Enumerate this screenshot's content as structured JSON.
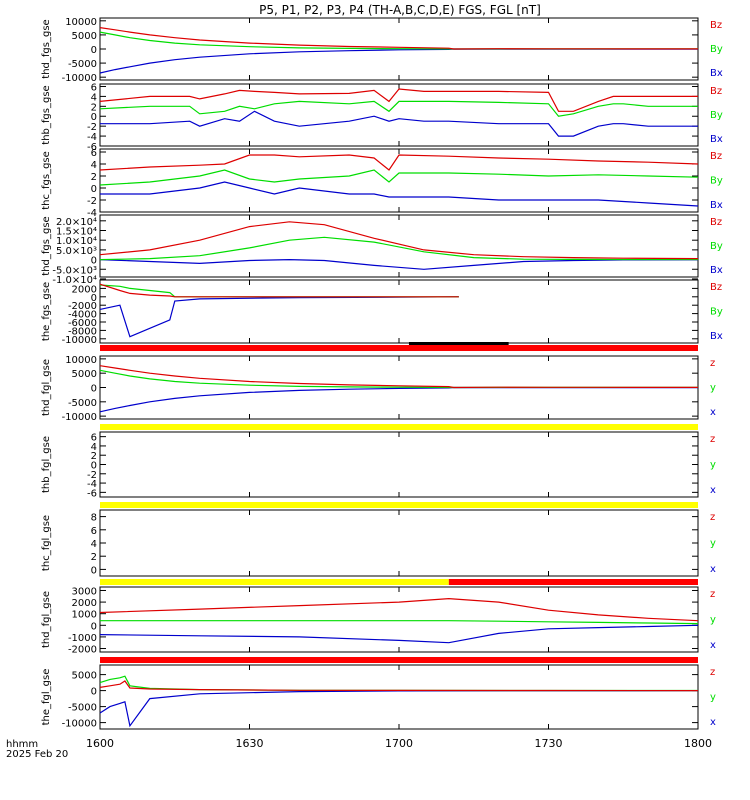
{
  "title": "P5, P1, P2, P3, P4 (TH-A,B,C,D,E) FGS, FGL [nT]",
  "time_axis": {
    "label_line1": "hhmm",
    "label_line2": "2025 Feb 20",
    "ticks": [
      "1600",
      "1630",
      "1700",
      "1730",
      "1800"
    ]
  },
  "colors": {
    "x": "#0000cc",
    "y": "#00dd00",
    "z": "#dd0000",
    "bar_red": "#ff0000",
    "bar_yellow": "#ffff00",
    "bar_black": "#000000"
  },
  "chart_data": [
    {
      "type": "line",
      "name": "thd_fgs_gse",
      "ylabel": "thd_fgs_gse",
      "ylim": [
        -11000,
        11000
      ],
      "ytick_labels": [
        "10000",
        "5000",
        "0",
        "-5000",
        "-10000"
      ],
      "yticks": [
        10000,
        5000,
        0,
        -5000,
        -10000
      ],
      "legend": [
        "Bz",
        "By",
        "Bx"
      ],
      "x": [
        0,
        3,
        6,
        10,
        15,
        20,
        30,
        40,
        50,
        60,
        70,
        71,
        80,
        90,
        100,
        110,
        120
      ],
      "series": [
        {
          "name": "Bz",
          "values": [
            7600,
            6800,
            6000,
            5000,
            4000,
            3200,
            2100,
            1400,
            900,
            600,
            300,
            0,
            100,
            80,
            60,
            50,
            40
          ]
        },
        {
          "name": "By",
          "values": [
            6000,
            5000,
            4000,
            3000,
            2100,
            1500,
            800,
            400,
            200,
            100,
            50,
            0,
            40,
            30,
            20,
            20,
            20
          ]
        },
        {
          "name": "Bx",
          "values": [
            -8500,
            -7300,
            -6300,
            -5000,
            -3800,
            -2900,
            -1700,
            -1000,
            -600,
            -300,
            -150,
            0,
            -50,
            -40,
            -30,
            -20,
            -20
          ]
        }
      ]
    },
    {
      "type": "line",
      "name": "thb_fgs_gse",
      "ylabel": "thb_fgs_gse",
      "ylim": [
        -6,
        6.5
      ],
      "ytick_labels": [
        "6",
        "4",
        "2",
        "0",
        "-2",
        "-4",
        "-6"
      ],
      "yticks": [
        6,
        4,
        2,
        0,
        -2,
        -4,
        -6
      ],
      "legend": [
        "Bz",
        "By",
        "Bx"
      ],
      "x": [
        0,
        10,
        18,
        20,
        25,
        28,
        31,
        35,
        40,
        50,
        55,
        58,
        60,
        65,
        70,
        80,
        90,
        92,
        95,
        100,
        103,
        105,
        110,
        120
      ],
      "series": [
        {
          "name": "Bz",
          "values": [
            3,
            4,
            4,
            3.5,
            4.5,
            5.2,
            5,
            4.8,
            4.5,
            4.6,
            5.2,
            3,
            5.5,
            5,
            5,
            5,
            4.8,
            1,
            1,
            3,
            4,
            4,
            4,
            4
          ]
        },
        {
          "name": "By",
          "values": [
            1.5,
            2,
            2,
            0.5,
            1,
            2,
            1.5,
            2.5,
            3,
            2.5,
            3,
            1,
            3,
            3,
            3,
            2.8,
            2.5,
            0,
            0.5,
            2,
            2.5,
            2.5,
            2,
            2
          ]
        },
        {
          "name": "Bx",
          "values": [
            -1.5,
            -1.5,
            -1,
            -2,
            -0.5,
            -1,
            1,
            -1,
            -2,
            -1,
            0,
            -1,
            -0.5,
            -1,
            -1,
            -1.5,
            -1.5,
            -4,
            -4,
            -2,
            -1.5,
            -1.5,
            -2,
            -2
          ]
        }
      ]
    },
    {
      "type": "line",
      "name": "thc_fgs_gse",
      "ylabel": "thc_fgs_gse",
      "ylim": [
        -4,
        6.5
      ],
      "ytick_labels": [
        "6",
        "4",
        "2",
        "0",
        "-2",
        "-4"
      ],
      "yticks": [
        6,
        4,
        2,
        0,
        -2,
        -4
      ],
      "legend": [
        "Bz",
        "By",
        "Bx"
      ],
      "x": [
        0,
        10,
        20,
        25,
        30,
        35,
        40,
        50,
        55,
        58,
        60,
        70,
        80,
        90,
        100,
        110,
        120
      ],
      "series": [
        {
          "name": "Bz",
          "values": [
            3,
            3.5,
            3.8,
            4,
            5.5,
            5.5,
            5.2,
            5.5,
            5,
            3,
            5.5,
            5.3,
            5,
            4.8,
            4.5,
            4.3,
            4
          ]
        },
        {
          "name": "By",
          "values": [
            0.5,
            1,
            2,
            3,
            1.5,
            1,
            1.5,
            2,
            3,
            1,
            2.5,
            2.5,
            2.3,
            2,
            2.2,
            2,
            1.8
          ]
        },
        {
          "name": "Bx",
          "values": [
            -1,
            -1,
            0,
            1,
            0,
            -1,
            0,
            -1,
            -1,
            -1.5,
            -1.5,
            -1.5,
            -2,
            -2,
            -2,
            -2.5,
            -3
          ]
        }
      ]
    },
    {
      "type": "line",
      "name": "thd_fgs_gse",
      "ylabel": "thd_fgs_gse",
      "ylim": [
        -9000,
        23000
      ],
      "ytick_labels": [
        "2.0×10⁴",
        "1.5×10⁴",
        "1.0×10⁴",
        "5.0×10³",
        "0",
        "-5.0×10³",
        "-1.0×10⁴"
      ],
      "yticks": [
        20000,
        15000,
        10000,
        5000,
        0,
        -5000,
        -10000
      ],
      "legend": [
        "Bz",
        "By",
        "Bx"
      ],
      "x": [
        0,
        10,
        20,
        30,
        38,
        45,
        55,
        65,
        75,
        85,
        95,
        105,
        120
      ],
      "series": [
        {
          "name": "Bz",
          "values": [
            2500,
            5000,
            10000,
            17000,
            19500,
            18000,
            11000,
            5000,
            2500,
            1500,
            1000,
            700,
            500
          ]
        },
        {
          "name": "By",
          "values": [
            0,
            500,
            2000,
            6000,
            10000,
            11500,
            9000,
            4000,
            1000,
            200,
            100,
            50,
            50
          ]
        },
        {
          "name": "Bx",
          "values": [
            0,
            -1000,
            -2000,
            -500,
            0,
            -500,
            -3000,
            -5000,
            -3000,
            -1000,
            -500,
            -200,
            -100
          ]
        }
      ]
    },
    {
      "type": "line",
      "name": "the_fgs_gse",
      "ylabel": "the_fgs_gse",
      "ylim": [
        -11000,
        4000
      ],
      "ytick_labels": [
        "2000",
        "0",
        "-2000",
        "-4000",
        "-6000",
        "-8000",
        "-10000"
      ],
      "yticks": [
        2000,
        0,
        -2000,
        -4000,
        -6000,
        -8000,
        -10000
      ],
      "legend": [
        "Bz",
        "By",
        "Bx"
      ],
      "x": [
        0,
        4,
        6,
        10,
        14,
        15,
        20,
        40,
        60,
        72
      ],
      "series": [
        {
          "name": "Bz",
          "values": [
            3000,
            1500,
            800,
            400,
            200,
            0,
            0,
            0,
            0,
            0
          ]
        },
        {
          "name": "By",
          "values": [
            2800,
            2500,
            2000,
            1500,
            1000,
            0,
            0,
            0,
            0,
            0
          ]
        },
        {
          "name": "Bx",
          "values": [
            -3000,
            -2000,
            -9500,
            -7500,
            -5500,
            -1000,
            -500,
            -200,
            -100,
            0
          ]
        }
      ]
    },
    {
      "type": "line",
      "name": "thd_fgl_gse",
      "ylabel": "thd_fgl_gse",
      "ylim": [
        -11000,
        11000
      ],
      "ytick_labels": [
        "10000",
        "5000",
        "0",
        "-5000",
        "-10000"
      ],
      "yticks": [
        10000,
        5000,
        0,
        -5000,
        -10000
      ],
      "legend": [
        "z",
        "y",
        "x"
      ],
      "x": [
        0,
        3,
        6,
        10,
        15,
        20,
        30,
        40,
        50,
        60,
        70,
        71,
        80,
        90,
        100,
        110,
        120
      ],
      "series": [
        {
          "name": "z",
          "values": [
            7600,
            6800,
            6000,
            5000,
            4000,
            3200,
            2100,
            1400,
            900,
            600,
            300,
            0,
            100,
            80,
            60,
            50,
            40
          ]
        },
        {
          "name": "y",
          "values": [
            6000,
            5000,
            4000,
            3000,
            2100,
            1500,
            800,
            400,
            200,
            100,
            50,
            0,
            40,
            30,
            20,
            20,
            20
          ]
        },
        {
          "name": "x",
          "values": [
            -8500,
            -7300,
            -6300,
            -5000,
            -3800,
            -2900,
            -1700,
            -1000,
            -600,
            -300,
            -150,
            0,
            -50,
            -40,
            -30,
            -20,
            -20
          ]
        }
      ]
    },
    {
      "type": "line",
      "name": "thb_fgl_gse",
      "ylabel": "thb_fgl_gse",
      "ylim": [
        -7,
        7
      ],
      "ytick_labels": [
        "6",
        "4",
        "2",
        "0",
        "-2",
        "-4",
        "-6"
      ],
      "yticks": [
        6,
        4,
        2,
        0,
        -2,
        -4,
        -6
      ],
      "legend": [
        "z",
        "y",
        "x"
      ],
      "x": [],
      "series": []
    },
    {
      "type": "line",
      "name": "thc_fgl_gse",
      "ylabel": "thc_fgl_gse",
      "ylim": [
        -1,
        9
      ],
      "ytick_labels": [
        "8",
        "6",
        "4",
        "2",
        "0"
      ],
      "yticks": [
        8,
        6,
        4,
        2,
        0
      ],
      "legend": [
        "z",
        "y",
        "x"
      ],
      "x": [],
      "series": []
    },
    {
      "type": "line",
      "name": "thd_fgl_gse",
      "ylabel": "thd_fgl_gse",
      "ylim": [
        -2300,
        3300
      ],
      "ytick_labels": [
        "3000",
        "2000",
        "1000",
        "0",
        "-1000",
        "-2000"
      ],
      "yticks": [
        3000,
        2000,
        1000,
        0,
        -1000,
        -2000
      ],
      "legend": [
        "z",
        "y",
        "x"
      ],
      "x": [
        0,
        20,
        40,
        60,
        70,
        80,
        90,
        100,
        110,
        120
      ],
      "series": [
        {
          "name": "z",
          "values": [
            1100,
            1400,
            1700,
            2000,
            2300,
            2000,
            1300,
            900,
            600,
            400
          ]
        },
        {
          "name": "y",
          "values": [
            400,
            400,
            400,
            400,
            400,
            350,
            300,
            250,
            200,
            150
          ]
        },
        {
          "name": "x",
          "values": [
            -800,
            -900,
            -1000,
            -1300,
            -1500,
            -700,
            -300,
            -200,
            -100,
            0
          ]
        }
      ]
    },
    {
      "type": "line",
      "name": "the_fgl_gse",
      "ylabel": "the_fgl_gse",
      "ylim": [
        -12000,
        8000
      ],
      "ytick_labels": [
        "5000",
        "0",
        "-5000",
        "-10000"
      ],
      "yticks": [
        5000,
        0,
        -5000,
        -10000
      ],
      "legend": [
        "z",
        "y",
        "x"
      ],
      "x": [
        0,
        2,
        4,
        5,
        6,
        10,
        20,
        40,
        60,
        90,
        120
      ],
      "series": [
        {
          "name": "z",
          "values": [
            1000,
            1500,
            2000,
            3000,
            800,
            500,
            300,
            100,
            50,
            20,
            10
          ]
        },
        {
          "name": "y",
          "values": [
            2500,
            3500,
            4000,
            4500,
            1500,
            700,
            300,
            100,
            50,
            30,
            20
          ]
        },
        {
          "name": "x",
          "values": [
            -7000,
            -5000,
            -4000,
            -3500,
            -11000,
            -2500,
            -1000,
            -300,
            -100,
            -50,
            -30
          ]
        }
      ]
    }
  ],
  "status_bars": [
    {
      "name": "bar-thd-fgl",
      "segments": [
        {
          "from": 0,
          "to": 120,
          "color": "red"
        }
      ],
      "marker": {
        "from": 62,
        "to": 82,
        "color": "black"
      }
    },
    {
      "name": "bar-thb-fgl",
      "segments": [
        {
          "from": 0,
          "to": 120,
          "color": "yellow"
        }
      ]
    },
    {
      "name": "bar-thc-fgl",
      "segments": [
        {
          "from": 0,
          "to": 120,
          "color": "yellow"
        }
      ]
    },
    {
      "name": "bar-thd-fgl-2",
      "segments": [
        {
          "from": 0,
          "to": 70,
          "color": "yellow"
        },
        {
          "from": 70,
          "to": 120,
          "color": "red"
        }
      ]
    },
    {
      "name": "bar-the-fgl",
      "segments": [
        {
          "from": 0,
          "to": 120,
          "color": "red"
        }
      ]
    }
  ]
}
